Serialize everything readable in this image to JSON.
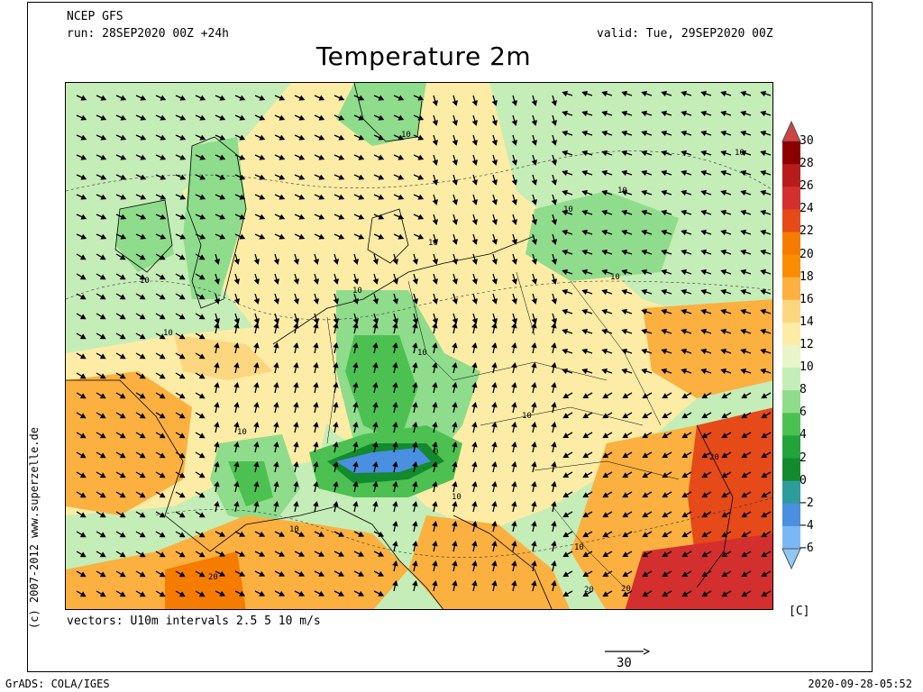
{
  "header": {
    "model": "NCEP GFS",
    "run": "run: 28SEP2020 00Z +24h",
    "valid": "valid: Tue, 29SEP2020 00Z",
    "title": "Temperature 2m"
  },
  "map": {
    "isotherm_labels": [
      "10",
      "10",
      "10",
      "10",
      "10",
      "10",
      "10",
      "10",
      "10",
      "10",
      "10",
      "10",
      "10",
      "10",
      "10",
      "20",
      "20",
      "20",
      "20",
      "0"
    ]
  },
  "colorbar": {
    "unit": "[C]",
    "ticks": [
      30,
      28,
      26,
      24,
      22,
      20,
      18,
      16,
      14,
      12,
      10,
      8,
      6,
      4,
      2,
      0,
      -2,
      -4,
      -6
    ],
    "tick_labels": [
      "30",
      "28",
      "26",
      "24",
      "22",
      "20",
      "18",
      "16",
      "14",
      "12",
      "10",
      "8",
      "6",
      "4",
      "2",
      "0",
      "−2",
      "−4",
      "−6"
    ],
    "colors": [
      "#8b0000",
      "#b71c1c",
      "#d32f2f",
      "#e64a19",
      "#f57c00",
      "#fb8c00",
      "#fbb040",
      "#fdd680",
      "#fdeca6",
      "#e8f5c8",
      "#c5edb8",
      "#8fdc8c",
      "#4cc151",
      "#23a33a",
      "#138a2e",
      "#2e9c9c",
      "#4a8fe0",
      "#7ab8f5"
    ]
  },
  "footer": {
    "credit": "(c) 2007-2012 www.superzelle.de",
    "vectors": "vectors: U10m intervals 2.5 5 10 m/s",
    "ref_label": "30",
    "grads": "GrADS: COLA/IGES",
    "timestamp": "2020-09-28-05:52"
  }
}
